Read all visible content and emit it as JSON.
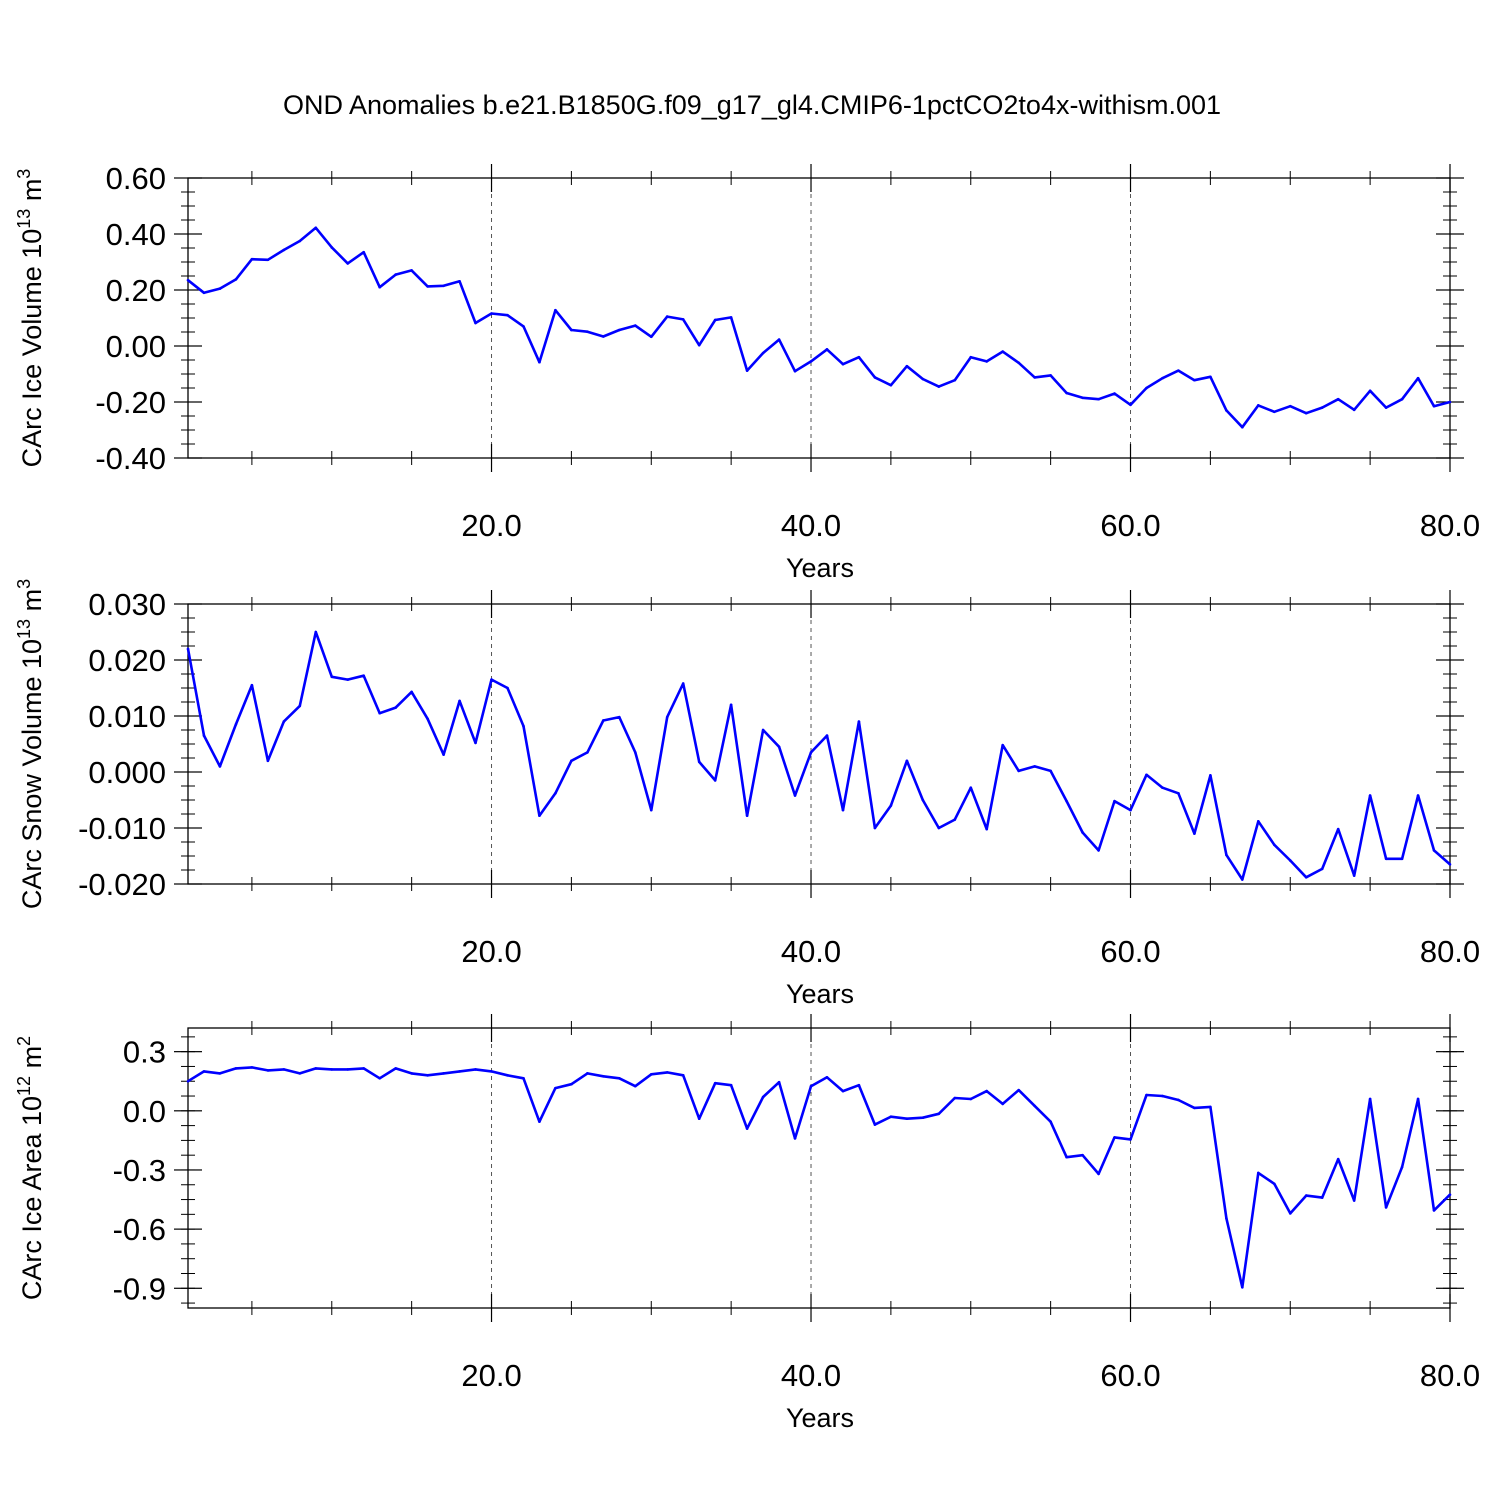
{
  "title": "OND Anomalies b.e21.B1850G.f09_g17_gl4.CMIP6-1pctCO2to4x-withism.001",
  "line_color": "#0000ff",
  "chart_data": [
    {
      "type": "line",
      "ylabel_main": "CArc Ice Volume 10",
      "ylabel_sup1": "13",
      "ylabel_mid": " m",
      "ylabel_sup2": "3",
      "xlabel": "Years",
      "xlim": [
        1,
        80
      ],
      "ylim": [
        -0.4,
        0.6
      ],
      "x_ticks": [
        20,
        40,
        60,
        80
      ],
      "x_tick_labels": [
        "20.0",
        "40.0",
        "60.0",
        "80.0"
      ],
      "y_ticks": [
        -0.4,
        -0.2,
        0.0,
        0.2,
        0.4,
        0.6
      ],
      "y_tick_labels": [
        "-0.40",
        "-0.20",
        "0.00",
        "0.20",
        "0.40",
        "0.60"
      ],
      "y_minor_step": 0.05,
      "x_minor_step": 5,
      "x_gridlines": [
        20,
        40,
        60
      ],
      "x": [
        1,
        2,
        3,
        4,
        5,
        6,
        7,
        8,
        9,
        10,
        11,
        12,
        13,
        14,
        15,
        16,
        17,
        18,
        19,
        20,
        21,
        22,
        23,
        24,
        25,
        26,
        27,
        28,
        29,
        30,
        31,
        32,
        33,
        34,
        35,
        36,
        37,
        38,
        39,
        40,
        41,
        42,
        43,
        44,
        45,
        46,
        47,
        48,
        49,
        50,
        51,
        52,
        53,
        54,
        55,
        56,
        57,
        58,
        59,
        60,
        61,
        62,
        63,
        64,
        65,
        66,
        67,
        68,
        69,
        70,
        71,
        72,
        73,
        74,
        75,
        76,
        77,
        78,
        79,
        80
      ],
      "values": [
        0.235,
        0.19,
        0.205,
        0.238,
        0.31,
        0.308,
        0.343,
        0.375,
        0.422,
        0.352,
        0.295,
        0.335,
        0.21,
        0.255,
        0.27,
        0.213,
        0.215,
        0.231,
        0.082,
        0.116,
        0.11,
        0.07,
        -0.058,
        0.128,
        0.057,
        0.051,
        0.034,
        0.057,
        0.073,
        0.033,
        0.105,
        0.095,
        0.003,
        0.093,
        0.102,
        -0.088,
        -0.025,
        0.023,
        -0.09,
        -0.055,
        -0.012,
        -0.065,
        -0.04,
        -0.112,
        -0.14,
        -0.072,
        -0.118,
        -0.145,
        -0.122,
        -0.04,
        -0.055,
        -0.02,
        -0.06,
        -0.112,
        -0.105,
        -0.168,
        -0.185,
        -0.19,
        -0.17,
        -0.21,
        -0.15,
        -0.115,
        -0.088,
        -0.122,
        -0.11,
        -0.23,
        -0.29,
        -0.212,
        -0.235,
        -0.215,
        -0.24,
        -0.22,
        -0.19,
        -0.228,
        -0.16,
        -0.22,
        -0.19,
        -0.115,
        -0.215,
        -0.2
      ]
    },
    {
      "type": "line",
      "ylabel_main": "CArc Snow Volume 10",
      "ylabel_sup1": "13",
      "ylabel_mid": " m",
      "ylabel_sup2": "3",
      "xlabel": "Years",
      "xlim": [
        1,
        80
      ],
      "ylim": [
        -0.02,
        0.03
      ],
      "x_ticks": [
        20,
        40,
        60,
        80
      ],
      "x_tick_labels": [
        "20.0",
        "40.0",
        "60.0",
        "80.0"
      ],
      "y_ticks": [
        -0.02,
        -0.01,
        0.0,
        0.01,
        0.02,
        0.03
      ],
      "y_tick_labels": [
        "-0.020",
        "-0.010",
        "0.000",
        "0.010",
        "0.020",
        "0.030"
      ],
      "y_minor_step": 0.0025,
      "x_minor_step": 5,
      "x_gridlines": [
        20,
        40,
        60
      ],
      "x": [
        1,
        2,
        3,
        4,
        5,
        6,
        7,
        8,
        9,
        10,
        11,
        12,
        13,
        14,
        15,
        16,
        17,
        18,
        19,
        20,
        21,
        22,
        23,
        24,
        25,
        26,
        27,
        28,
        29,
        30,
        31,
        32,
        33,
        34,
        35,
        36,
        37,
        38,
        39,
        40,
        41,
        42,
        43,
        44,
        45,
        46,
        47,
        48,
        49,
        50,
        51,
        52,
        53,
        54,
        55,
        56,
        57,
        58,
        59,
        60,
        61,
        62,
        63,
        64,
        65,
        66,
        67,
        68,
        69,
        70,
        71,
        72,
        73,
        74,
        75,
        76,
        77,
        78,
        79,
        80
      ],
      "values": [
        0.022,
        0.0065,
        0.001,
        0.0085,
        0.0155,
        0.002,
        0.009,
        0.0118,
        0.025,
        0.017,
        0.0165,
        0.0172,
        0.0105,
        0.0115,
        0.0143,
        0.0095,
        0.0031,
        0.0127,
        0.0052,
        0.0165,
        0.015,
        0.0082,
        -0.0078,
        -0.0038,
        0.002,
        0.0035,
        0.0092,
        0.0098,
        0.0035,
        -0.0068,
        0.0098,
        0.0158,
        0.0018,
        -0.0015,
        0.012,
        -0.0078,
        0.0075,
        0.0045,
        -0.0042,
        0.0035,
        0.0065,
        -0.0068,
        0.009,
        -0.01,
        -0.006,
        0.002,
        -0.005,
        -0.01,
        -0.0085,
        -0.0028,
        -0.0102,
        0.0048,
        0.0002,
        0.001,
        0.0002,
        -0.0052,
        -0.0108,
        -0.014,
        -0.0052,
        -0.0068,
        -0.0005,
        -0.0028,
        -0.0038,
        -0.011,
        -0.0006,
        -0.0148,
        -0.0192,
        -0.0088,
        -0.013,
        -0.0158,
        -0.0188,
        -0.0173,
        -0.0102,
        -0.0185,
        -0.0042,
        -0.0155,
        -0.0155,
        -0.0042,
        -0.014,
        -0.0165
      ]
    },
    {
      "type": "line",
      "ylabel_main": "CArc Ice Area 10",
      "ylabel_sup1": "12",
      "ylabel_mid": " m",
      "ylabel_sup2": "2",
      "xlabel": "Years",
      "xlim": [
        1,
        80
      ],
      "ylim": [
        -1.0,
        0.42
      ],
      "x_ticks": [
        20,
        40,
        60,
        80
      ],
      "x_tick_labels": [
        "20.0",
        "40.0",
        "60.0",
        "80.0"
      ],
      "y_ticks": [
        -0.9,
        -0.6,
        -0.3,
        0.0,
        0.3
      ],
      "y_tick_labels": [
        "-0.9",
        "-0.6",
        "-0.3",
        "0.0",
        "0.3"
      ],
      "y_minor_step": 0.075,
      "x_minor_step": 5,
      "x_gridlines": [
        20,
        40,
        60
      ],
      "x": [
        1,
        2,
        3,
        4,
        5,
        6,
        7,
        8,
        9,
        10,
        11,
        12,
        13,
        14,
        15,
        16,
        17,
        18,
        19,
        20,
        21,
        22,
        23,
        24,
        25,
        26,
        27,
        28,
        29,
        30,
        31,
        32,
        33,
        34,
        35,
        36,
        37,
        38,
        39,
        40,
        41,
        42,
        43,
        44,
        45,
        46,
        47,
        48,
        49,
        50,
        51,
        52,
        53,
        54,
        55,
        56,
        57,
        58,
        59,
        60,
        61,
        62,
        63,
        64,
        65,
        66,
        67,
        68,
        69,
        70,
        71,
        72,
        73,
        74,
        75,
        76,
        77,
        78,
        79,
        80
      ],
      "values": [
        0.15,
        0.2,
        0.19,
        0.215,
        0.22,
        0.205,
        0.21,
        0.19,
        0.215,
        0.21,
        0.21,
        0.215,
        0.165,
        0.215,
        0.19,
        0.18,
        0.19,
        0.2,
        0.21,
        0.2,
        0.18,
        0.165,
        -0.055,
        0.115,
        0.135,
        0.19,
        0.175,
        0.165,
        0.125,
        0.185,
        0.195,
        0.18,
        -0.04,
        0.14,
        0.13,
        -0.09,
        0.07,
        0.145,
        -0.14,
        0.125,
        0.17,
        0.1,
        0.13,
        -0.07,
        -0.03,
        -0.04,
        -0.035,
        -0.015,
        0.065,
        0.06,
        0.1,
        0.035,
        0.105,
        0.025,
        -0.055,
        -0.235,
        -0.225,
        -0.32,
        -0.135,
        -0.145,
        0.08,
        0.075,
        0.055,
        0.015,
        0.02,
        -0.545,
        -0.895,
        -0.315,
        -0.37,
        -0.52,
        -0.43,
        -0.44,
        -0.245,
        -0.455,
        0.06,
        -0.49,
        -0.285,
        0.06,
        -0.505,
        -0.425
      ]
    }
  ]
}
